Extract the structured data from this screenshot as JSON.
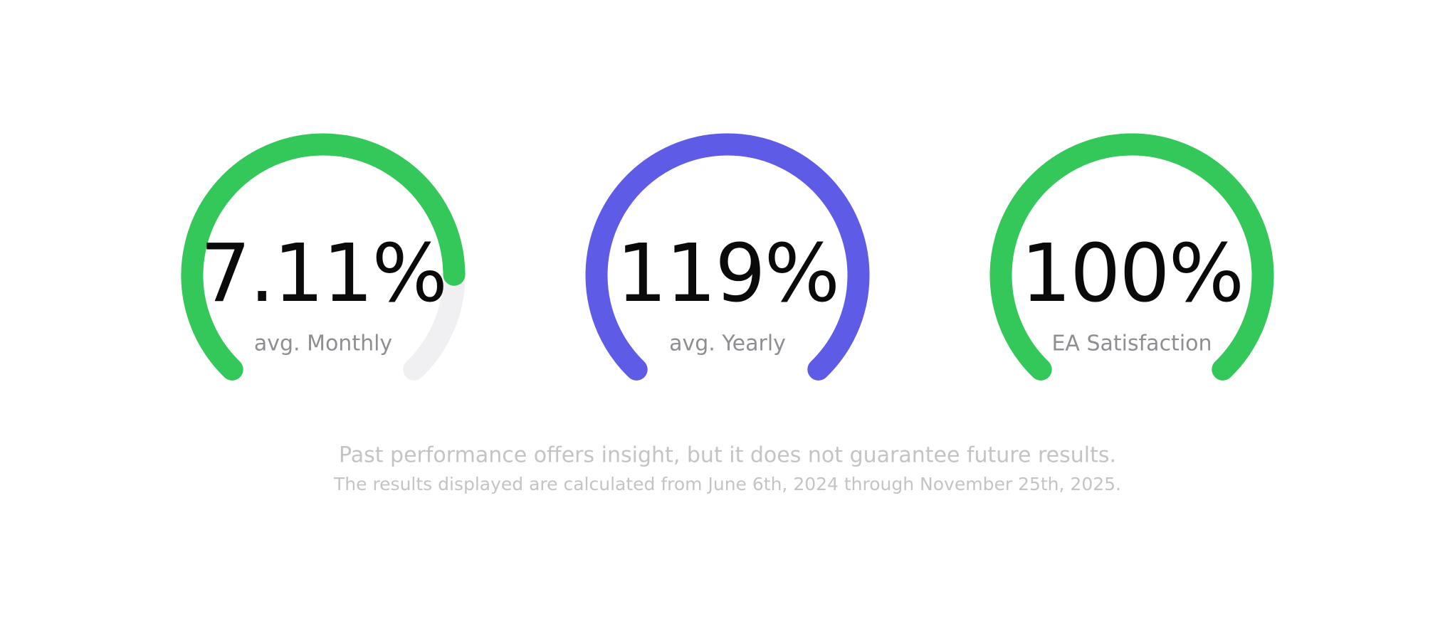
{
  "gauges": [
    {
      "value": "7.11%",
      "label": "avg. Monthly",
      "fill": 83,
      "color": "#34c759"
    },
    {
      "value": "119%",
      "label": "avg. Yearly",
      "fill": 100,
      "color": "#5e5ce6"
    },
    {
      "value": "100%",
      "label": "EA Satisfaction",
      "fill": 100,
      "color": "#34c759"
    }
  ],
  "footer": {
    "line1": "Past performance offers insight, but it does not guarantee future results.",
    "line2": "The results displayed are calculated from June 6th, 2024 through November 25th, 2025."
  }
}
